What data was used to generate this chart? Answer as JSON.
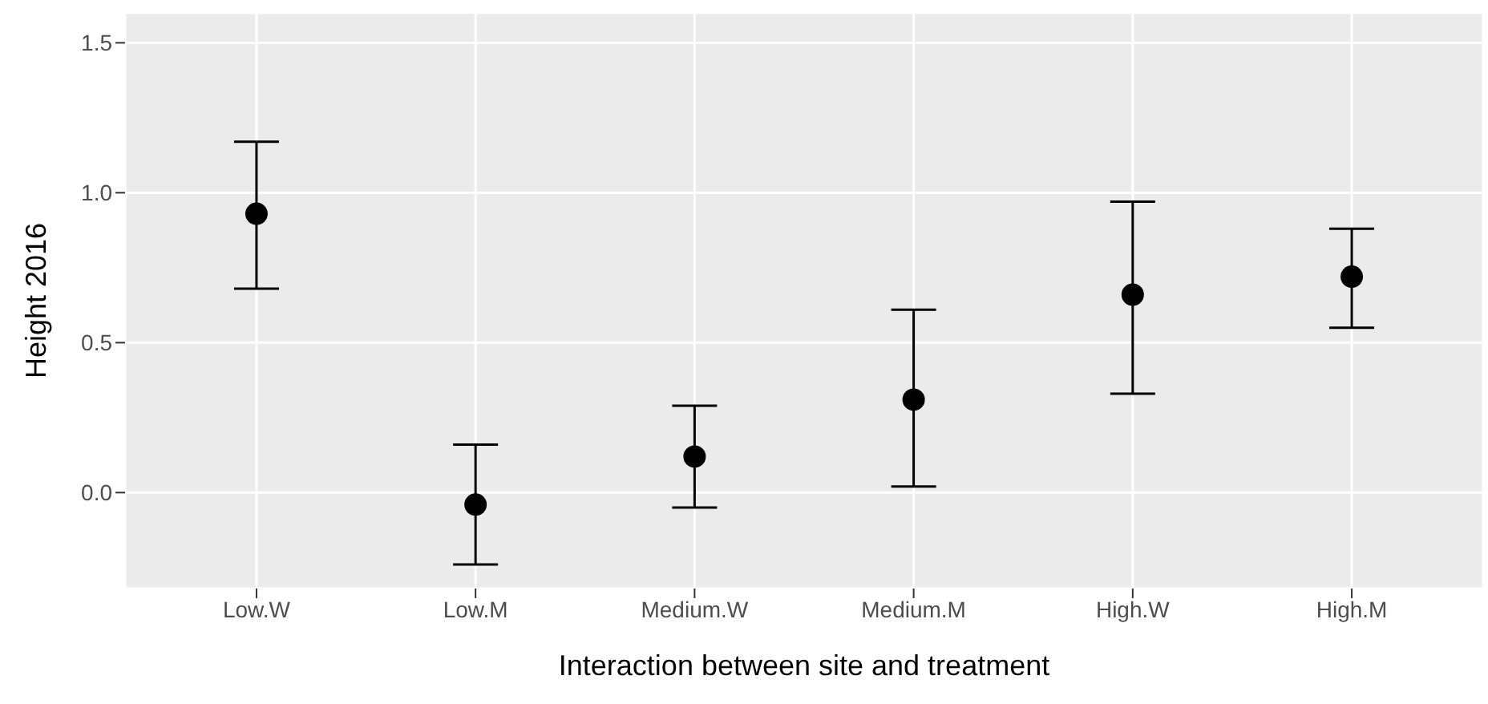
{
  "chart_data": {
    "type": "scatter",
    "xlabel": "Interaction between site and treatment",
    "ylabel": "Height 2016",
    "categories": [
      "Low.W",
      "Low.M",
      "Medium.W",
      "Medium.M",
      "High.W",
      "High.M"
    ],
    "values": [
      0.93,
      -0.04,
      0.12,
      0.31,
      0.66,
      0.72
    ],
    "errors": [
      [
        0.68,
        1.17
      ],
      [
        -0.24,
        0.16
      ],
      [
        -0.05,
        0.29
      ],
      [
        0.02,
        0.61
      ],
      [
        0.33,
        0.97
      ],
      [
        0.55,
        0.88
      ]
    ],
    "color": "#000000",
    "marker": "circle",
    "grid": true,
    "ylim": [
      -0.32,
      1.6
    ],
    "yticks": [
      {
        "value": 0,
        "label": "0.0"
      },
      0.5,
      {
        "value": 1,
        "label": "1.0"
      },
      1.5
    ]
  }
}
